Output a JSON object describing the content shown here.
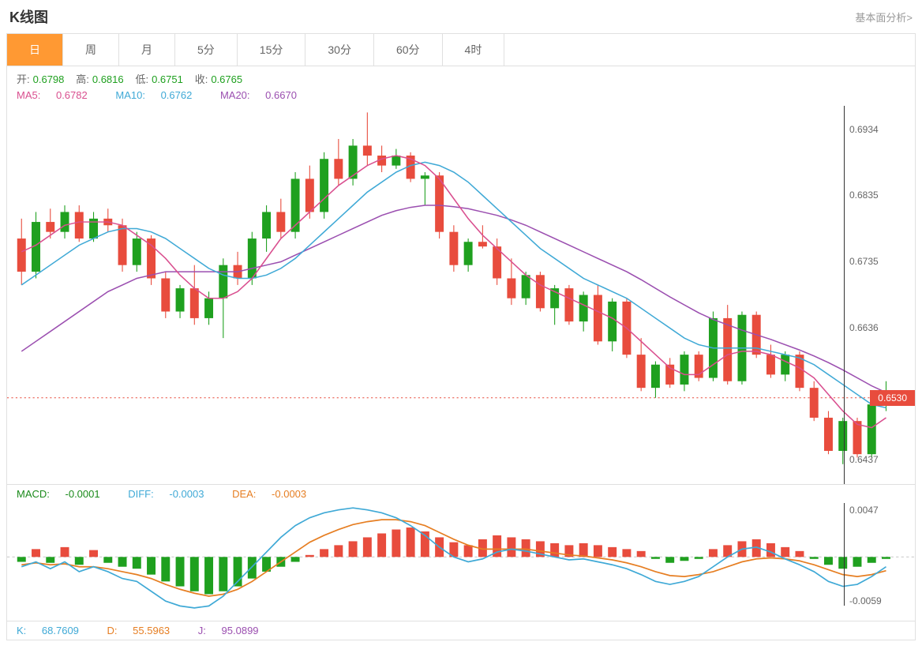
{
  "header": {
    "title": "K线图",
    "link": "基本面分析>"
  },
  "tabs": [
    "日",
    "周",
    "月",
    "5分",
    "15分",
    "30分",
    "60分",
    "4时"
  ],
  "activeTab": 0,
  "ohlc": {
    "open_label": "开:",
    "open": "0.6798",
    "high_label": "高:",
    "high": "0.6816",
    "low_label": "低:",
    "low": "0.6751",
    "close_label": "收:",
    "close": "0.6765"
  },
  "ma": {
    "ma5_label": "MA5:",
    "ma5": "0.6782",
    "ma5_color": "#d94f8f",
    "ma10_label": "MA10:",
    "ma10": "0.6762",
    "ma10_color": "#3fa9d6",
    "ma20_label": "MA20:",
    "ma20": "0.6670",
    "ma20_color": "#9b4fb0"
  },
  "macd_labels": {
    "macd_label": "MACD:",
    "macd": "-0.0001",
    "macd_color": "#1a8a1a",
    "diff_label": "DIFF:",
    "diff": "-0.0003",
    "diff_color": "#3fa9d6",
    "dea_label": "DEA:",
    "dea": "-0.0003",
    "dea_color": "#e67e22"
  },
  "kdj": {
    "k_label": "K:",
    "k": "68.7609",
    "k_color": "#3fa9d6",
    "d_label": "D:",
    "d": "55.5963",
    "d_color": "#e67e22",
    "j_label": "J:",
    "j": "95.0899",
    "j_color": "#9b4fb0"
  },
  "colors": {
    "up": "#1fa01f",
    "down": "#e84c3d",
    "label": "#666",
    "ohlc_value": "#1fa01f",
    "grid": "#e0e0e0",
    "dotted": "#e84c3d"
  },
  "priceChart": {
    "type": "candlestick",
    "ymin": 0.64,
    "ymax": 0.697,
    "yticks": [
      {
        "v": 0.6934,
        "label": "0.6934"
      },
      {
        "v": 0.6835,
        "label": "0.6835"
      },
      {
        "v": 0.6735,
        "label": "0.6735"
      },
      {
        "v": 0.6636,
        "label": "0.6636"
      },
      {
        "v": 0.6437,
        "label": "0.6437"
      }
    ],
    "current_price": 0.653,
    "current_label": "0.6530",
    "candles": [
      {
        "o": 0.677,
        "h": 0.68,
        "l": 0.67,
        "c": 0.672
      },
      {
        "o": 0.672,
        "h": 0.681,
        "l": 0.671,
        "c": 0.6795
      },
      {
        "o": 0.6795,
        "h": 0.6815,
        "l": 0.677,
        "c": 0.678
      },
      {
        "o": 0.678,
        "h": 0.682,
        "l": 0.677,
        "c": 0.681
      },
      {
        "o": 0.681,
        "h": 0.682,
        "l": 0.6765,
        "c": 0.677
      },
      {
        "o": 0.677,
        "h": 0.681,
        "l": 0.6765,
        "c": 0.68
      },
      {
        "o": 0.68,
        "h": 0.6815,
        "l": 0.678,
        "c": 0.679
      },
      {
        "o": 0.679,
        "h": 0.68,
        "l": 0.672,
        "c": 0.673
      },
      {
        "o": 0.673,
        "h": 0.678,
        "l": 0.672,
        "c": 0.677
      },
      {
        "o": 0.677,
        "h": 0.6775,
        "l": 0.67,
        "c": 0.671
      },
      {
        "o": 0.671,
        "h": 0.672,
        "l": 0.665,
        "c": 0.666
      },
      {
        "o": 0.666,
        "h": 0.67,
        "l": 0.665,
        "c": 0.6695
      },
      {
        "o": 0.6695,
        "h": 0.673,
        "l": 0.664,
        "c": 0.665
      },
      {
        "o": 0.665,
        "h": 0.669,
        "l": 0.664,
        "c": 0.668
      },
      {
        "o": 0.668,
        "h": 0.674,
        "l": 0.662,
        "c": 0.673
      },
      {
        "o": 0.673,
        "h": 0.675,
        "l": 0.67,
        "c": 0.671
      },
      {
        "o": 0.671,
        "h": 0.678,
        "l": 0.67,
        "c": 0.677
      },
      {
        "o": 0.677,
        "h": 0.682,
        "l": 0.675,
        "c": 0.681
      },
      {
        "o": 0.681,
        "h": 0.683,
        "l": 0.677,
        "c": 0.678
      },
      {
        "o": 0.678,
        "h": 0.687,
        "l": 0.677,
        "c": 0.686
      },
      {
        "o": 0.686,
        "h": 0.688,
        "l": 0.68,
        "c": 0.681
      },
      {
        "o": 0.681,
        "h": 0.69,
        "l": 0.68,
        "c": 0.689
      },
      {
        "o": 0.689,
        "h": 0.692,
        "l": 0.685,
        "c": 0.686
      },
      {
        "o": 0.686,
        "h": 0.692,
        "l": 0.685,
        "c": 0.691
      },
      {
        "o": 0.691,
        "h": 0.696,
        "l": 0.688,
        "c": 0.6895
      },
      {
        "o": 0.6895,
        "h": 0.691,
        "l": 0.687,
        "c": 0.688
      },
      {
        "o": 0.688,
        "h": 0.6905,
        "l": 0.6875,
        "c": 0.6895
      },
      {
        "o": 0.6895,
        "h": 0.69,
        "l": 0.6855,
        "c": 0.686
      },
      {
        "o": 0.686,
        "h": 0.687,
        "l": 0.682,
        "c": 0.6865
      },
      {
        "o": 0.6865,
        "h": 0.687,
        "l": 0.677,
        "c": 0.678
      },
      {
        "o": 0.678,
        "h": 0.679,
        "l": 0.672,
        "c": 0.673
      },
      {
        "o": 0.673,
        "h": 0.677,
        "l": 0.672,
        "c": 0.6765
      },
      {
        "o": 0.6765,
        "h": 0.679,
        "l": 0.6755,
        "c": 0.6758
      },
      {
        "o": 0.6758,
        "h": 0.677,
        "l": 0.67,
        "c": 0.671
      },
      {
        "o": 0.671,
        "h": 0.674,
        "l": 0.667,
        "c": 0.668
      },
      {
        "o": 0.668,
        "h": 0.672,
        "l": 0.667,
        "c": 0.6715
      },
      {
        "o": 0.6715,
        "h": 0.672,
        "l": 0.666,
        "c": 0.6665
      },
      {
        "o": 0.6665,
        "h": 0.67,
        "l": 0.664,
        "c": 0.6695
      },
      {
        "o": 0.6695,
        "h": 0.67,
        "l": 0.664,
        "c": 0.6645
      },
      {
        "o": 0.6645,
        "h": 0.669,
        "l": 0.663,
        "c": 0.6685
      },
      {
        "o": 0.6685,
        "h": 0.67,
        "l": 0.661,
        "c": 0.6615
      },
      {
        "o": 0.6615,
        "h": 0.668,
        "l": 0.66,
        "c": 0.6675
      },
      {
        "o": 0.6675,
        "h": 0.668,
        "l": 0.659,
        "c": 0.6595
      },
      {
        "o": 0.6595,
        "h": 0.662,
        "l": 0.654,
        "c": 0.6545
      },
      {
        "o": 0.6545,
        "h": 0.6585,
        "l": 0.653,
        "c": 0.658
      },
      {
        "o": 0.658,
        "h": 0.659,
        "l": 0.6545,
        "c": 0.655
      },
      {
        "o": 0.655,
        "h": 0.66,
        "l": 0.654,
        "c": 0.6595
      },
      {
        "o": 0.6595,
        "h": 0.66,
        "l": 0.6555,
        "c": 0.656
      },
      {
        "o": 0.656,
        "h": 0.666,
        "l": 0.6555,
        "c": 0.665
      },
      {
        "o": 0.665,
        "h": 0.667,
        "l": 0.655,
        "c": 0.6555
      },
      {
        "o": 0.6555,
        "h": 0.666,
        "l": 0.655,
        "c": 0.6655
      },
      {
        "o": 0.6655,
        "h": 0.666,
        "l": 0.659,
        "c": 0.6595
      },
      {
        "o": 0.6595,
        "h": 0.661,
        "l": 0.656,
        "c": 0.6565
      },
      {
        "o": 0.6565,
        "h": 0.66,
        "l": 0.6555,
        "c": 0.6595
      },
      {
        "o": 0.6595,
        "h": 0.66,
        "l": 0.654,
        "c": 0.6545
      },
      {
        "o": 0.6545,
        "h": 0.6555,
        "l": 0.6495,
        "c": 0.65
      },
      {
        "o": 0.65,
        "h": 0.651,
        "l": 0.6445,
        "c": 0.645
      },
      {
        "o": 0.645,
        "h": 0.65,
        "l": 0.643,
        "c": 0.6495
      },
      {
        "o": 0.6495,
        "h": 0.65,
        "l": 0.644,
        "c": 0.6445
      },
      {
        "o": 0.6445,
        "h": 0.6525,
        "l": 0.644,
        "c": 0.652
      },
      {
        "o": 0.652,
        "h": 0.6555,
        "l": 0.651,
        "c": 0.653
      }
    ],
    "ma5": [
      0.675,
      0.676,
      0.6775,
      0.679,
      0.6795,
      0.6795,
      0.6795,
      0.679,
      0.6775,
      0.676,
      0.674,
      0.6715,
      0.6695,
      0.668,
      0.668,
      0.669,
      0.671,
      0.674,
      0.677,
      0.679,
      0.681,
      0.683,
      0.685,
      0.6865,
      0.688,
      0.689,
      0.6895,
      0.689,
      0.688,
      0.686,
      0.683,
      0.68,
      0.6775,
      0.6755,
      0.6735,
      0.6715,
      0.67,
      0.669,
      0.668,
      0.667,
      0.666,
      0.665,
      0.6635,
      0.6615,
      0.6595,
      0.6575,
      0.6565,
      0.6565,
      0.658,
      0.6595,
      0.66,
      0.66,
      0.6595,
      0.6585,
      0.6575,
      0.656,
      0.6535,
      0.651,
      0.649,
      0.6485,
      0.65
    ],
    "ma10": [
      0.67,
      0.6715,
      0.673,
      0.6745,
      0.676,
      0.677,
      0.678,
      0.6785,
      0.6785,
      0.678,
      0.677,
      0.6755,
      0.674,
      0.6725,
      0.6715,
      0.671,
      0.671,
      0.6715,
      0.6725,
      0.674,
      0.676,
      0.678,
      0.68,
      0.682,
      0.684,
      0.6855,
      0.687,
      0.688,
      0.6885,
      0.688,
      0.687,
      0.6855,
      0.6835,
      0.6815,
      0.6795,
      0.6775,
      0.6755,
      0.674,
      0.6725,
      0.671,
      0.67,
      0.669,
      0.668,
      0.6665,
      0.665,
      0.6635,
      0.662,
      0.661,
      0.6605,
      0.6605,
      0.6605,
      0.6605,
      0.66,
      0.6595,
      0.659,
      0.658,
      0.6565,
      0.655,
      0.6535,
      0.652,
      0.6515
    ],
    "ma20": [
      0.66,
      0.6615,
      0.663,
      0.6645,
      0.666,
      0.6675,
      0.669,
      0.67,
      0.671,
      0.6715,
      0.672,
      0.672,
      0.672,
      0.672,
      0.672,
      0.672,
      0.6725,
      0.673,
      0.6735,
      0.6745,
      0.6755,
      0.6765,
      0.6775,
      0.6785,
      0.6795,
      0.6805,
      0.6812,
      0.6817,
      0.682,
      0.682,
      0.6818,
      0.6815,
      0.681,
      0.6805,
      0.6798,
      0.679,
      0.678,
      0.677,
      0.676,
      0.675,
      0.674,
      0.673,
      0.672,
      0.6708,
      0.6695,
      0.6682,
      0.667,
      0.6658,
      0.6648,
      0.664,
      0.6632,
      0.6625,
      0.6618,
      0.661,
      0.6602,
      0.6593,
      0.6583,
      0.6572,
      0.656,
      0.6548,
      0.6538
    ]
  },
  "macdChart": {
    "ymin": -0.0065,
    "ymax": 0.0055,
    "yticks": [
      {
        "v": 0.0047,
        "label": "0.0047"
      },
      {
        "v": -0.0059,
        "label": "-0.0059"
      }
    ],
    "hist": [
      -0.0005,
      0.0008,
      -0.0006,
      0.001,
      -0.0008,
      0.0007,
      -0.0006,
      -0.001,
      -0.0012,
      -0.0018,
      -0.0025,
      -0.003,
      -0.0035,
      -0.0038,
      -0.0035,
      -0.003,
      -0.0022,
      -0.0015,
      -0.001,
      -0.0005,
      0.0002,
      0.0008,
      0.0012,
      0.0016,
      0.002,
      0.0024,
      0.0028,
      0.003,
      0.0026,
      0.002,
      0.0015,
      0.0012,
      0.0018,
      0.0022,
      0.002,
      0.0018,
      0.0016,
      0.0014,
      0.0012,
      0.0014,
      0.0012,
      0.001,
      0.0008,
      0.0006,
      -0.0002,
      -0.0006,
      -0.0004,
      -0.0002,
      0.0008,
      0.0012,
      0.0016,
      0.0018,
      0.0014,
      0.001,
      0.0006,
      -0.0002,
      -0.0008,
      -0.0012,
      -0.001,
      -0.0006,
      -0.0002
    ],
    "diff": [
      -0.001,
      -0.0005,
      -0.0012,
      -0.0005,
      -0.0015,
      -0.001,
      -0.0015,
      -0.0022,
      -0.0025,
      -0.0035,
      -0.0045,
      -0.005,
      -0.0052,
      -0.005,
      -0.004,
      -0.0025,
      -0.001,
      0.0005,
      0.002,
      0.0032,
      0.004,
      0.0045,
      0.0048,
      0.005,
      0.0048,
      0.0045,
      0.004,
      0.0032,
      0.0022,
      0.001,
      0.0,
      -0.0005,
      -0.0002,
      0.0005,
      0.0008,
      0.0006,
      0.0003,
      0.0,
      -0.0003,
      -0.0002,
      -0.0005,
      -0.0008,
      -0.0012,
      -0.0018,
      -0.0025,
      -0.0028,
      -0.0025,
      -0.002,
      -0.001,
      0.0,
      0.0008,
      0.001,
      0.0005,
      -0.0002,
      -0.0008,
      -0.0015,
      -0.0025,
      -0.003,
      -0.0028,
      -0.002,
      -0.001
    ],
    "dea": [
      -0.0008,
      -0.0006,
      -0.0008,
      -0.0007,
      -0.001,
      -0.001,
      -0.0012,
      -0.0015,
      -0.0018,
      -0.0022,
      -0.0028,
      -0.0033,
      -0.0037,
      -0.004,
      -0.0038,
      -0.0033,
      -0.0025,
      -0.0015,
      -0.0005,
      0.0005,
      0.0015,
      0.0022,
      0.0028,
      0.0033,
      0.0036,
      0.0038,
      0.0038,
      0.0036,
      0.0032,
      0.0025,
      0.0018,
      0.0012,
      0.0008,
      0.0008,
      0.0008,
      0.0008,
      0.0006,
      0.0004,
      0.0002,
      0.0001,
      -0.0001,
      -0.0003,
      -0.0006,
      -0.001,
      -0.0015,
      -0.0019,
      -0.002,
      -0.0018,
      -0.0015,
      -0.001,
      -0.0005,
      -0.0002,
      -0.0001,
      -0.0002,
      -0.0004,
      -0.0008,
      -0.0013,
      -0.0018,
      -0.002,
      -0.0018,
      -0.0014
    ]
  }
}
